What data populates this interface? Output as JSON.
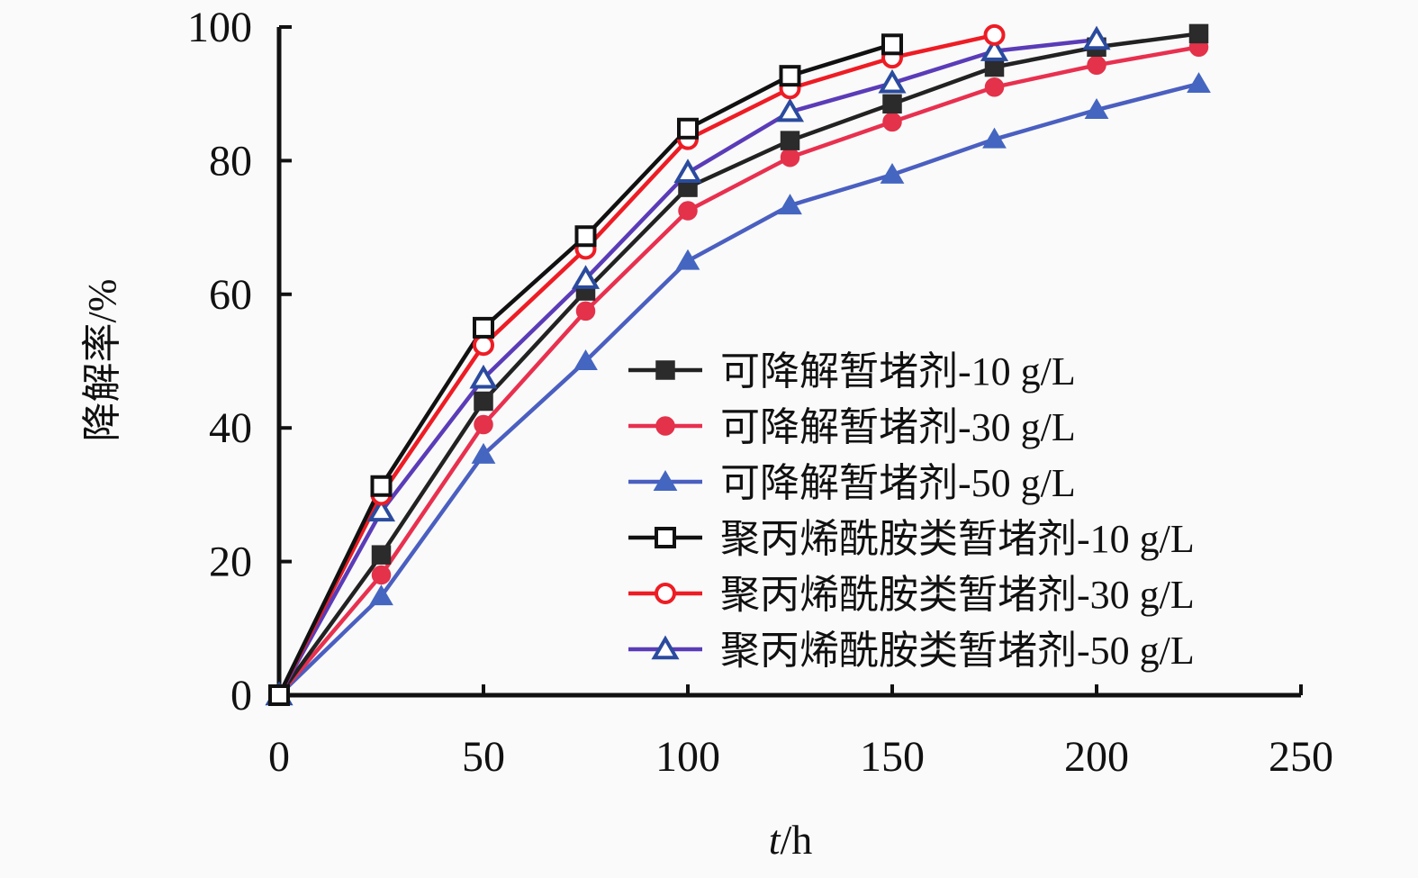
{
  "chart_data": {
    "type": "line",
    "title": "",
    "xlabel_italic": "t",
    "xlabel_unit": "/h",
    "ylabel": "降解率/%",
    "xlim": [
      0,
      250
    ],
    "ylim": [
      0,
      100
    ],
    "xticks": [
      0,
      50,
      100,
      150,
      200,
      250
    ],
    "yticks": [
      0,
      20,
      40,
      60,
      80,
      100
    ],
    "grid": false,
    "legend_position": "center-right",
    "series": [
      {
        "name": "可降解暂堵剂-10 g/L",
        "marker": "square-filled",
        "color": "#2b2b2b",
        "line": "#222222",
        "x": [
          0,
          25,
          50,
          75,
          100,
          125,
          150,
          175,
          200,
          225
        ],
        "y": [
          0,
          21,
          44,
          60.5,
          76,
          83,
          88.5,
          94,
          97,
          99
        ]
      },
      {
        "name": "可降解暂堵剂-30 g/L",
        "marker": "circle-filled",
        "color": "#e3324a",
        "line": "#e8304f",
        "x": [
          0,
          25,
          50,
          75,
          100,
          125,
          150,
          175,
          200,
          225
        ],
        "y": [
          0,
          18,
          40.5,
          57.5,
          72.5,
          80.5,
          85.8,
          91,
          94.3,
          97
        ]
      },
      {
        "name": "可降解暂堵剂-50 g/L",
        "marker": "triangle-filled",
        "color": "#4466c0",
        "line": "#4a5fc0",
        "x": [
          0,
          25,
          50,
          75,
          100,
          125,
          150,
          175,
          200,
          225
        ],
        "y": [
          0,
          14.8,
          36,
          50,
          65,
          73.3,
          77.9,
          83.2,
          87.6,
          91.5
        ]
      },
      {
        "name": "聚丙烯酰胺类暂堵剂-10 g/L",
        "marker": "square-open",
        "color": "#111111",
        "line": "#111111",
        "x": [
          0,
          25,
          50,
          75,
          100,
          125,
          150
        ],
        "y": [
          0,
          31.3,
          55,
          68.7,
          84.8,
          92.7,
          97.4
        ]
      },
      {
        "name": "聚丙烯酰胺类暂堵剂-30 g/L",
        "marker": "circle-open",
        "color": "#ee1c24",
        "line": "#ee1c24",
        "x": [
          0,
          25,
          50,
          75,
          100,
          125,
          150,
          175
        ],
        "y": [
          0,
          30,
          52.4,
          66.8,
          83.2,
          90.8,
          95.4,
          98.8
        ]
      },
      {
        "name": "聚丙烯酰胺类暂堵剂-50 g/L",
        "marker": "triangle-open",
        "color": "#2a4b9e",
        "line": "#5a3cb8",
        "x": [
          0,
          25,
          50,
          75,
          100,
          125,
          150,
          175,
          200
        ],
        "y": [
          0,
          27.5,
          47.4,
          62.3,
          78.2,
          87.3,
          91.6,
          96.4,
          98.1
        ]
      }
    ]
  }
}
